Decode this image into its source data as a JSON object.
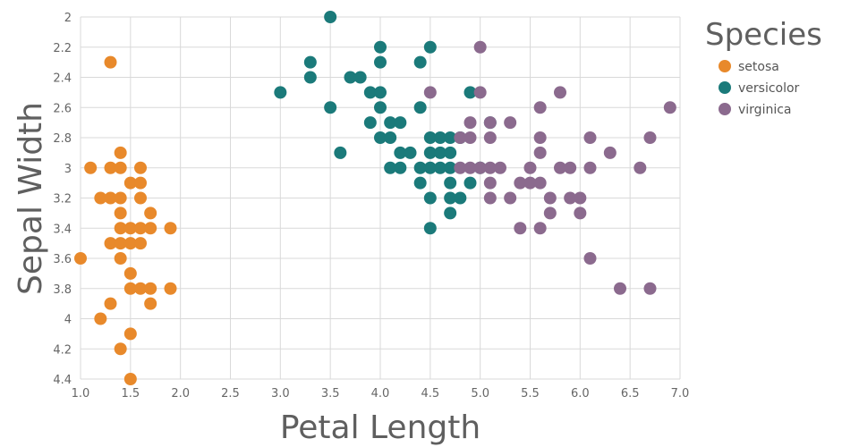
{
  "chart_data": {
    "type": "scatter",
    "xlabel": "Petal Length",
    "ylabel": "Sepal Width",
    "xlim": [
      1.0,
      7.0
    ],
    "ylim": [
      2.0,
      4.4
    ],
    "y_reversed": true,
    "xticks": [
      "1.0",
      "1.5",
      "2.0",
      "2.5",
      "3.0",
      "3.5",
      "4.0",
      "4.5",
      "5.0",
      "5.5",
      "6.0",
      "6.5",
      "7.0"
    ],
    "yticks": [
      "2",
      "2.2",
      "2.4",
      "2.6",
      "2.8",
      "3",
      "3.2",
      "3.4",
      "3.6",
      "3.8",
      "4",
      "4.2",
      "4.4"
    ],
    "grid": true,
    "legend": {
      "title": "Species",
      "placement": "right"
    },
    "series": [
      {
        "name": "setosa",
        "color": "#E8892B",
        "points": [
          [
            1.3,
            2.3
          ],
          [
            1.1,
            3.0
          ],
          [
            1.3,
            3.0
          ],
          [
            1.4,
            3.0
          ],
          [
            1.6,
            3.0
          ],
          [
            1.4,
            2.9
          ],
          [
            1.2,
            3.2
          ],
          [
            1.3,
            3.2
          ],
          [
            1.4,
            3.2
          ],
          [
            1.6,
            3.2
          ],
          [
            1.5,
            3.1
          ],
          [
            1.6,
            3.1
          ],
          [
            1.4,
            3.3
          ],
          [
            1.7,
            3.3
          ],
          [
            1.4,
            3.4
          ],
          [
            1.5,
            3.4
          ],
          [
            1.6,
            3.4
          ],
          [
            1.7,
            3.4
          ],
          [
            1.9,
            3.4
          ],
          [
            1.3,
            3.5
          ],
          [
            1.4,
            3.5
          ],
          [
            1.5,
            3.5
          ],
          [
            1.6,
            3.5
          ],
          [
            1.0,
            3.6
          ],
          [
            1.4,
            3.6
          ],
          [
            1.5,
            3.7
          ],
          [
            1.5,
            3.8
          ],
          [
            1.6,
            3.8
          ],
          [
            1.7,
            3.8
          ],
          [
            1.9,
            3.8
          ],
          [
            1.3,
            3.9
          ],
          [
            1.7,
            3.9
          ],
          [
            1.2,
            4.0
          ],
          [
            1.5,
            4.1
          ],
          [
            1.4,
            4.2
          ],
          [
            1.5,
            4.4
          ]
        ]
      },
      {
        "name": "versicolor",
        "color": "#1B7A7A",
        "points": [
          [
            3.5,
            2.0
          ],
          [
            4.0,
            2.2
          ],
          [
            4.5,
            2.2
          ],
          [
            3.3,
            2.3
          ],
          [
            4.0,
            2.3
          ],
          [
            4.4,
            2.3
          ],
          [
            3.3,
            2.4
          ],
          [
            3.7,
            2.4
          ],
          [
            3.8,
            2.4
          ],
          [
            3.0,
            2.5
          ],
          [
            3.9,
            2.5
          ],
          [
            4.0,
            2.5
          ],
          [
            4.9,
            2.5
          ],
          [
            3.5,
            2.6
          ],
          [
            4.0,
            2.6
          ],
          [
            4.4,
            2.6
          ],
          [
            3.9,
            2.7
          ],
          [
            4.1,
            2.7
          ],
          [
            4.2,
            2.7
          ],
          [
            5.1,
            2.7
          ],
          [
            4.0,
            2.8
          ],
          [
            4.1,
            2.8
          ],
          [
            4.5,
            2.8
          ],
          [
            4.6,
            2.8
          ],
          [
            4.7,
            2.8
          ],
          [
            4.8,
            2.8
          ],
          [
            3.6,
            2.9
          ],
          [
            4.2,
            2.9
          ],
          [
            4.3,
            2.9
          ],
          [
            4.5,
            2.9
          ],
          [
            4.6,
            2.9
          ],
          [
            4.7,
            2.9
          ],
          [
            4.1,
            3.0
          ],
          [
            4.2,
            3.0
          ],
          [
            4.4,
            3.0
          ],
          [
            4.5,
            3.0
          ],
          [
            4.6,
            3.0
          ],
          [
            4.7,
            3.0
          ],
          [
            5.0,
            3.0
          ],
          [
            4.4,
            3.1
          ],
          [
            4.7,
            3.1
          ],
          [
            4.9,
            3.1
          ],
          [
            4.5,
            3.2
          ],
          [
            4.7,
            3.2
          ],
          [
            4.8,
            3.2
          ],
          [
            4.7,
            3.3
          ],
          [
            4.5,
            3.4
          ]
        ]
      },
      {
        "name": "virginica",
        "color": "#8B6A8E",
        "points": [
          [
            5.0,
            2.2
          ],
          [
            4.5,
            2.5
          ],
          [
            5.0,
            2.5
          ],
          [
            5.8,
            2.5
          ],
          [
            5.6,
            2.6
          ],
          [
            6.9,
            2.6
          ],
          [
            4.9,
            2.7
          ],
          [
            5.1,
            2.7
          ],
          [
            5.3,
            2.7
          ],
          [
            4.8,
            2.8
          ],
          [
            4.9,
            2.8
          ],
          [
            5.1,
            2.8
          ],
          [
            5.6,
            2.8
          ],
          [
            6.1,
            2.8
          ],
          [
            6.7,
            2.8
          ],
          [
            5.6,
            2.9
          ],
          [
            6.3,
            2.9
          ],
          [
            4.8,
            3.0
          ],
          [
            4.9,
            3.0
          ],
          [
            5.0,
            3.0
          ],
          [
            5.1,
            3.0
          ],
          [
            5.2,
            3.0
          ],
          [
            5.5,
            3.0
          ],
          [
            5.8,
            3.0
          ],
          [
            5.9,
            3.0
          ],
          [
            6.1,
            3.0
          ],
          [
            6.6,
            3.0
          ],
          [
            5.1,
            3.1
          ],
          [
            5.4,
            3.1
          ],
          [
            5.5,
            3.1
          ],
          [
            5.6,
            3.1
          ],
          [
            5.1,
            3.2
          ],
          [
            5.3,
            3.2
          ],
          [
            5.7,
            3.2
          ],
          [
            5.9,
            3.2
          ],
          [
            6.0,
            3.2
          ],
          [
            5.7,
            3.3
          ],
          [
            6.0,
            3.3
          ],
          [
            5.4,
            3.4
          ],
          [
            5.6,
            3.4
          ],
          [
            6.1,
            3.6
          ],
          [
            6.4,
            3.8
          ],
          [
            6.7,
            3.8
          ]
        ]
      }
    ]
  }
}
